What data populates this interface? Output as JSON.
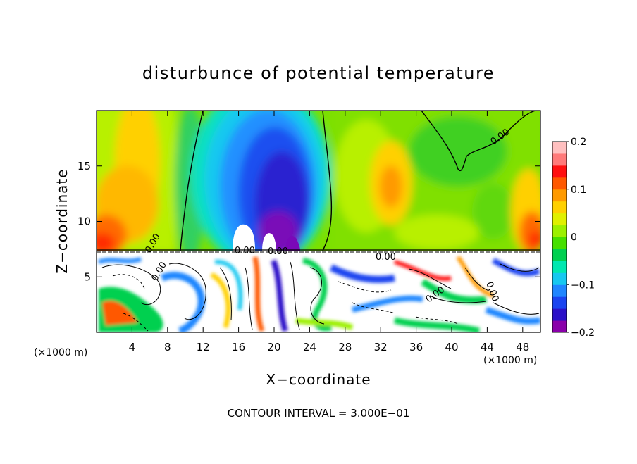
{
  "chart_data": {
    "type": "heatmap",
    "title": "disturbunce of potential temperature",
    "xlabel": "X−coordinate",
    "ylabel": "Z−coordinate",
    "x_unit_left": "(×1000 m)",
    "x_unit_right": "(×1000 m)",
    "xlim": [
      0,
      50
    ],
    "ylim": [
      0,
      20
    ],
    "x_ticks": [
      4,
      8,
      12,
      16,
      20,
      24,
      28,
      32,
      36,
      40,
      44,
      48
    ],
    "x_tick_labels": [
      "4",
      "8",
      "12",
      "16",
      "20",
      "24",
      "28",
      "32",
      "36",
      "40",
      "44",
      "48"
    ],
    "y_ticks": [
      5,
      10,
      15
    ],
    "y_tick_labels": [
      "5",
      "10",
      "15"
    ],
    "colorbar": {
      "range": [
        -0.2,
        0.2
      ],
      "ticks": [
        0.2,
        0.1,
        0,
        -0.1,
        -0.2
      ],
      "tick_labels": [
        "0.2",
        "0.1",
        "0",
        "−0.1",
        "−0.2"
      ],
      "colors": [
        "#8a00aa",
        "#2b10c8",
        "#1a44f0",
        "#1f86ff",
        "#16c8f0",
        "#00e8b0",
        "#00d050",
        "#46e000",
        "#9cf000",
        "#e0f000",
        "#ffd000",
        "#ff9a00",
        "#ff5800",
        "#ff1010",
        "#ff7a7a",
        "#ffc0c0"
      ]
    },
    "contour_labels": [
      "0.00",
      "0.00",
      "0.00",
      "0.00",
      "0.00",
      "0.00",
      "0.00",
      "0.00"
    ],
    "footer": "CONTOUR INTERVAL = 3.000E−01"
  }
}
